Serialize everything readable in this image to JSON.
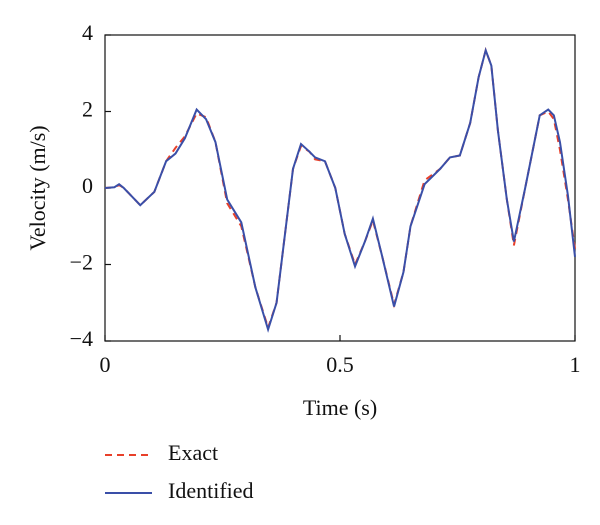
{
  "chart_data": {
    "type": "line",
    "xlabel": "Time (s)",
    "ylabel": "Velocity (m/s)",
    "x": [
      0,
      0.02,
      0.03,
      0.04,
      0.075,
      0.105,
      0.13,
      0.15,
      0.17,
      0.195,
      0.215,
      0.235,
      0.26,
      0.29,
      0.32,
      0.347,
      0.365,
      0.38,
      0.4,
      0.417,
      0.435,
      0.447,
      0.468,
      0.49,
      0.51,
      0.532,
      0.553,
      0.57,
      0.59,
      0.615,
      0.635,
      0.65,
      0.68,
      0.713,
      0.734,
      0.755,
      0.777,
      0.795,
      0.81,
      0.822,
      0.836,
      0.855,
      0.87,
      0.894,
      0.925,
      0.943,
      0.955,
      0.968,
      0.985,
      1.0
    ],
    "series": [
      {
        "name": "Exact",
        "color": "#e8402a",
        "dashed": true,
        "values": [
          0,
          0.02,
          0.08,
          0,
          -0.45,
          -0.1,
          0.7,
          1.05,
          1.35,
          1.95,
          1.85,
          1.2,
          -0.4,
          -1.0,
          -2.6,
          -3.65,
          -3.0,
          -1.5,
          0.5,
          1.1,
          0.95,
          0.75,
          0.7,
          0,
          -1.2,
          -2.0,
          -1.4,
          -0.85,
          -1.8,
          -3.05,
          -2.2,
          -1.0,
          0.2,
          0.5,
          0.8,
          0.85,
          1.7,
          2.9,
          3.6,
          3.2,
          1.5,
          -0.3,
          -1.5,
          0,
          1.9,
          2.0,
          1.8,
          1.0,
          -0.3,
          -1.6
        ]
      },
      {
        "name": "Identified",
        "color": "#3a4fa8",
        "dashed": false,
        "values": [
          0,
          0.02,
          0.1,
          0,
          -0.45,
          -0.1,
          0.7,
          0.9,
          1.3,
          2.05,
          1.8,
          1.2,
          -0.3,
          -0.9,
          -2.6,
          -3.7,
          -3.0,
          -1.5,
          0.5,
          1.15,
          0.95,
          0.8,
          0.7,
          0,
          -1.2,
          -2.05,
          -1.4,
          -0.8,
          -1.8,
          -3.1,
          -2.2,
          -1.0,
          0.1,
          0.5,
          0.8,
          0.85,
          1.7,
          2.9,
          3.6,
          3.2,
          1.5,
          -0.3,
          -1.4,
          0,
          1.9,
          2.05,
          1.9,
          1.2,
          -0.2,
          -1.8
        ]
      }
    ],
    "xlim": [
      0,
      1
    ],
    "xticks": [
      0,
      0.5,
      1
    ],
    "ylim": [
      -4,
      4
    ],
    "yticks": [
      {
        "value": -4,
        "label": "−4"
      },
      {
        "value": -2,
        "label": "−2"
      },
      0,
      2,
      4
    ]
  }
}
